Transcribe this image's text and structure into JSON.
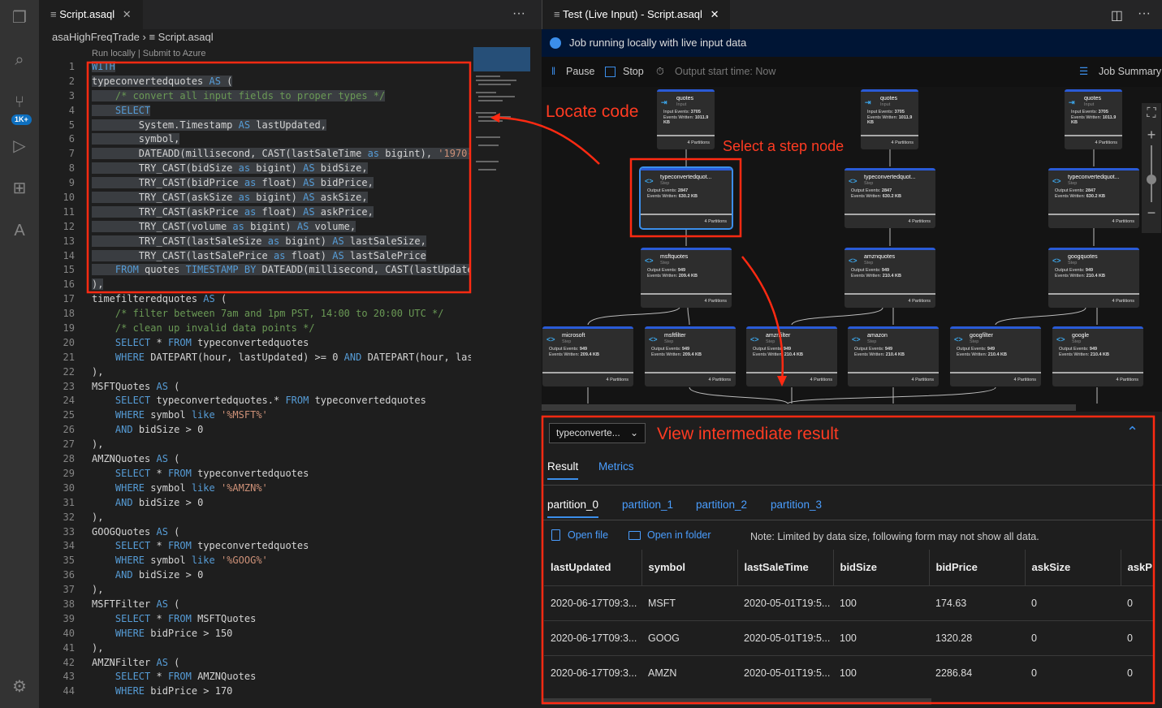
{
  "activity_bar": {
    "icons": [
      "files-icon",
      "search-icon",
      "source-control-icon",
      "run-debug-icon",
      "extensions-icon",
      "azure-icon",
      "settings-icon"
    ],
    "scm_badge": "1K+"
  },
  "editor": {
    "tab": "Script.asaql",
    "breadcrumb": [
      "asaHighFreqTrade",
      "Script.asaql"
    ],
    "codelens": {
      "run": "Run locally",
      "submit": "| Submit to Azure"
    },
    "lines": [
      "WITH",
      "typeconvertedquotes AS (",
      "    /* convert all input fields to proper types */",
      "    SELECT",
      "        System.Timestamp AS lastUpdated,",
      "        symbol,",
      "        DATEADD(millisecond, CAST(lastSaleTime as bigint), '1970-",
      "        TRY_CAST(bidSize as bigint) AS bidSize,",
      "        TRY_CAST(bidPrice as float) AS bidPrice,",
      "        TRY_CAST(askSize as bigint) AS askSize,",
      "        TRY_CAST(askPrice as float) AS askPrice,",
      "        TRY_CAST(volume as bigint) AS volume,",
      "        TRY_CAST(lastSaleSize as bigint) AS lastSaleSize,",
      "        TRY_CAST(lastSalePrice as float) AS lastSalePrice",
      "    FROM quotes TIMESTAMP BY DATEADD(millisecond, CAST(lastUpdate",
      "),",
      "timefilteredquotes AS (",
      "    /* filter between 7am and 1pm PST, 14:00 to 20:00 UTC */",
      "    /* clean up invalid data points */",
      "    SELECT * FROM typeconvertedquotes",
      "    WHERE DATEPART(hour, lastUpdated) >= 0 AND DATEPART(hour, las",
      "),",
      "MSFTQuotes AS (",
      "    SELECT typeconvertedquotes.* FROM typeconvertedquotes",
      "    WHERE symbol like '%MSFT%'",
      "    AND bidSize > 0",
      "),",
      "AMZNQuotes AS (",
      "    SELECT * FROM typeconvertedquotes",
      "    WHERE symbol like '%AMZN%'",
      "    AND bidSize > 0",
      "),",
      "GOOGQuotes AS (",
      "    SELECT * FROM typeconvertedquotes",
      "    WHERE symbol like '%GOOG%'",
      "    AND bidSize > 0",
      "),",
      "MSFTFilter AS (",
      "    SELECT * FROM MSFTQuotes",
      "    WHERE bidPrice > 150",
      "),",
      "AMZNFilter AS (",
      "    SELECT * FROM AMZNQuotes",
      "    WHERE bidPrice > 170"
    ],
    "selected_lines": [
      1,
      16
    ]
  },
  "test_panel": {
    "tab": "Test (Live Input) - Script.asaql",
    "banner": "Job running locally with live input data",
    "toolbar": {
      "pause": "Pause",
      "stop": "Stop",
      "output_start": "Output start time: Now",
      "job_summary": "Job Summary"
    },
    "nodes": [
      {
        "name": "quotes",
        "kind": "Input",
        "l1": "Input Events:",
        "v1": "3705",
        "l2": "Events Written:",
        "v2": "1011.9 KB",
        "parts": "4 Partitions"
      },
      {
        "name": "quotes",
        "kind": "Input",
        "l1": "Input Events:",
        "v1": "3705",
        "l2": "Events Written:",
        "v2": "1011.9 KB",
        "parts": "4 Partitions"
      },
      {
        "name": "quotes",
        "kind": "Input",
        "l1": "Input Events:",
        "v1": "3705",
        "l2": "Events Written:",
        "v2": "1011.9 KB",
        "parts": "4 Partitions"
      },
      {
        "name": "typeconvertedquot...",
        "kind": "Step",
        "l1": "Output Events:",
        "v1": "2847",
        "l2": "Events Written:",
        "v2": "630.2 KB",
        "parts": "4 Partitions"
      },
      {
        "name": "typeconvertedquot...",
        "kind": "Step",
        "l1": "Output Events:",
        "v1": "2847",
        "l2": "Events Written:",
        "v2": "630.2 KB",
        "parts": "4 Partitions"
      },
      {
        "name": "typeconvertedquot...",
        "kind": "Step",
        "l1": "Output Events:",
        "v1": "2847",
        "l2": "Events Written:",
        "v2": "630.2 KB",
        "parts": "4 Partitions"
      },
      {
        "name": "msftquotes",
        "kind": "Step",
        "l1": "Output Events:",
        "v1": "949",
        "l2": "Events Written:",
        "v2": "209.4 KB",
        "parts": "4 Partitions"
      },
      {
        "name": "amznquotes",
        "kind": "Step",
        "l1": "Output Events:",
        "v1": "949",
        "l2": "Events Written:",
        "v2": "210.4 KB",
        "parts": "4 Partitions"
      },
      {
        "name": "googquotes",
        "kind": "Step",
        "l1": "Output Events:",
        "v1": "949",
        "l2": "Events Written:",
        "v2": "210.4 KB",
        "parts": "4 Partitions"
      },
      {
        "name": "microsoft",
        "kind": "Step",
        "l1": "Output Events:",
        "v1": "949",
        "l2": "Events Written:",
        "v2": "209.4 KB",
        "parts": "4 Partitions"
      },
      {
        "name": "msftfilter",
        "kind": "Step",
        "l1": "Output Events:",
        "v1": "949",
        "l2": "Events Written:",
        "v2": "209.4 KB",
        "parts": "4 Partitions"
      },
      {
        "name": "amznfilter",
        "kind": "Step",
        "l1": "Output Events:",
        "v1": "949",
        "l2": "Events Written:",
        "v2": "210.4 KB",
        "parts": "4 Partitions"
      },
      {
        "name": "amazon",
        "kind": "Step",
        "l1": "Output Events:",
        "v1": "949",
        "l2": "Events Written:",
        "v2": "210.4 KB",
        "parts": "4 Partitions"
      },
      {
        "name": "googfilter",
        "kind": "Step",
        "l1": "Output Events:",
        "v1": "949",
        "l2": "Events Written:",
        "v2": "210.4 KB",
        "parts": "4 Partitions"
      },
      {
        "name": "google",
        "kind": "Step",
        "l1": "Output Events:",
        "v1": "949",
        "l2": "Events Written:",
        "v2": "210.4 KB",
        "parts": "4 Partitions"
      }
    ],
    "selected_node": "typeconvertedquot...",
    "result": {
      "dropdown": "typeconverte...",
      "tabs": [
        "Result",
        "Metrics"
      ],
      "partitions": [
        "partition_0",
        "partition_1",
        "partition_2",
        "partition_3"
      ],
      "open_file": "Open file",
      "open_folder": "Open in folder",
      "note": "Note: Limited by data size, following form may not show all data.",
      "columns": [
        "lastUpdated",
        "symbol",
        "lastSaleTime",
        "bidSize",
        "bidPrice",
        "askSize",
        "askP"
      ],
      "rows": [
        [
          "2020-06-17T09:3...",
          "MSFT",
          "2020-05-01T19:5...",
          "100",
          "174.63",
          "0",
          "0"
        ],
        [
          "2020-06-17T09:3...",
          "GOOG",
          "2020-05-01T19:5...",
          "100",
          "1320.28",
          "0",
          "0"
        ],
        [
          "2020-06-17T09:3...",
          "AMZN",
          "2020-05-01T19:5...",
          "100",
          "2286.84",
          "0",
          "0"
        ]
      ]
    }
  },
  "annotations": {
    "locate": "Locate code",
    "select": "Select a step node",
    "view": "View intermediate result",
    "color": "#ff2a12"
  },
  "colors": {
    "accent": "#3b8eea",
    "keyword": "#569cd6",
    "comment": "#6a9955",
    "string": "#ce9178"
  }
}
